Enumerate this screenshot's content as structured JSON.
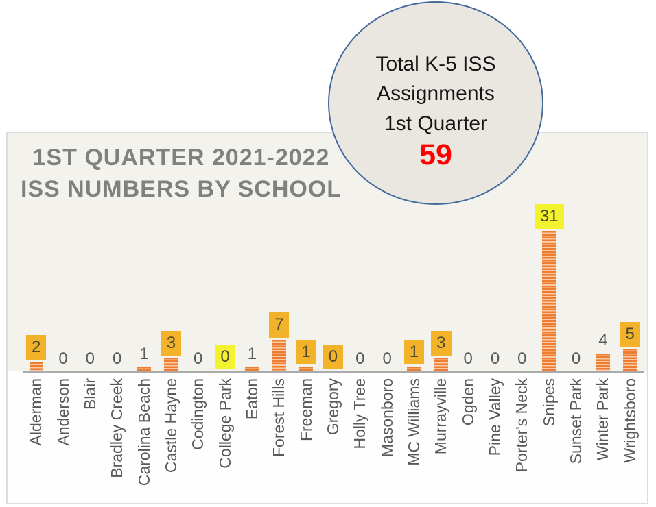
{
  "chart_title": {
    "line1": "1ST QUARTER 2021-2022",
    "line2": "ISS NUMBERS BY SCHOOL"
  },
  "callout": {
    "line1": "Total K-5 ISS",
    "line2": "Assignments",
    "line3": "1st Quarter",
    "total": "59"
  },
  "colors": {
    "bar": "#ED7D31",
    "bar_stripe": "#F8C9A4",
    "highlight_orange": "#F2B32A",
    "highlight_yellow": "#F2F22E",
    "title_gray": "#808080",
    "value_text": "#595959",
    "axis_line": "#ABABAB",
    "callout_fill": "#E9E7E0",
    "callout_border": "#44699D",
    "total_red": "#FF0000"
  },
  "chart_data": {
    "type": "bar",
    "title": "1ST QUARTER 2021-2022 ISS NUMBERS BY SCHOOL",
    "xlabel": "",
    "ylabel": "",
    "ylim": [
      0,
      31
    ],
    "grid": false,
    "legend": false,
    "bar_pattern": "horizontal-stripes",
    "categories": [
      "Alderman",
      "Anderson",
      "Blair",
      "Bradley Creek",
      "Carolina Beach",
      "Castle Hayne",
      "Codington",
      "College Park",
      "Eaton",
      "Forest Hills",
      "Freeman",
      "Gregory",
      "Holly Tree",
      "Masonboro",
      "MC Williams",
      "Murrayville",
      "Ogden",
      "Pine Valley",
      "Porter's Neck",
      "Snipes",
      "Sunset Park",
      "Winter Park",
      "Wrightsboro"
    ],
    "values": [
      2,
      0,
      0,
      0,
      1,
      3,
      0,
      0,
      1,
      7,
      1,
      0,
      0,
      0,
      1,
      3,
      0,
      0,
      0,
      31,
      0,
      4,
      5
    ],
    "data_label_highlights": [
      "orange",
      null,
      null,
      null,
      null,
      "orange",
      null,
      "yellow",
      null,
      "orange",
      "orange",
      "orange",
      null,
      null,
      "orange",
      "orange",
      null,
      null,
      null,
      "yellow",
      null,
      null,
      "orange"
    ],
    "total": 59
  }
}
